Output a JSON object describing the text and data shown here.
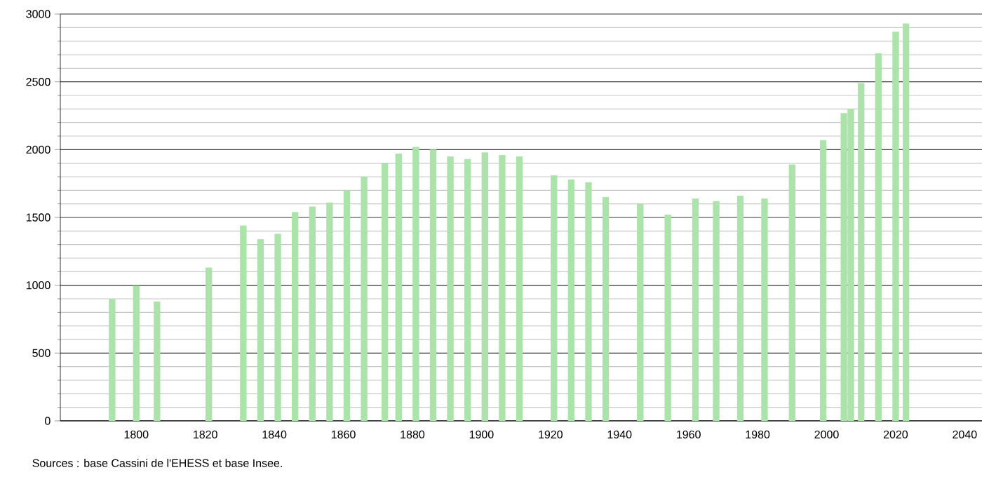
{
  "chart_data": {
    "type": "bar",
    "x": [
      1793,
      1800,
      1806,
      1821,
      1831,
      1836,
      1841,
      1846,
      1851,
      1856,
      1861,
      1866,
      1872,
      1876,
      1881,
      1886,
      1891,
      1896,
      1901,
      1906,
      1911,
      1921,
      1926,
      1931,
      1936,
      1946,
      1954,
      1962,
      1968,
      1975,
      1982,
      1990,
      1999,
      2005,
      2007,
      2010,
      2015,
      2020,
      2023
    ],
    "values": [
      900,
      1000,
      880,
      1130,
      1440,
      1340,
      1380,
      1540,
      1580,
      1610,
      1700,
      1800,
      1900,
      1970,
      2020,
      2000,
      1950,
      1930,
      1980,
      1960,
      1950,
      1810,
      1780,
      1760,
      1650,
      1600,
      1520,
      1640,
      1620,
      1660,
      1640,
      1890,
      2070,
      2270,
      2300,
      2490,
      2710,
      2870,
      2930
    ],
    "color": "#ace3aa",
    "xlim": [
      1778,
      2045
    ],
    "xticks": [
      1800,
      1820,
      1840,
      1860,
      1880,
      1900,
      1920,
      1940,
      1960,
      1980,
      2000,
      2020,
      2040
    ],
    "ylim": [
      0,
      3000
    ],
    "yticks": [
      0,
      500,
      1000,
      1500,
      2000,
      2500,
      3000
    ],
    "grid": "y",
    "annotations": [
      "Sources : base Cassini de l'EHESS et base Insee."
    ]
  }
}
